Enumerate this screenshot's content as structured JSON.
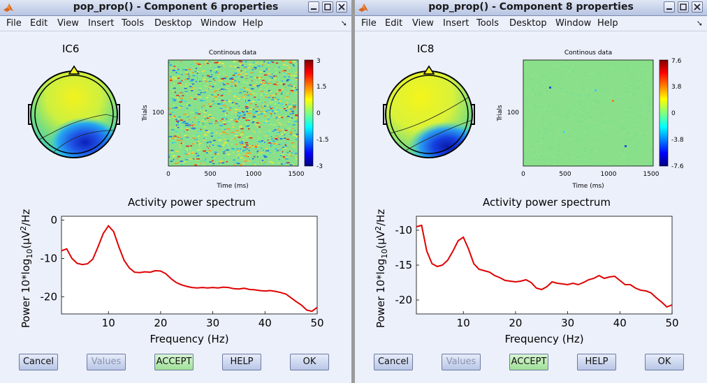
{
  "windows": [
    {
      "title": "pop_prop() - Component 6 properties",
      "menu": [
        "File",
        "Edit",
        "View",
        "Insert",
        "Tools",
        "Desktop",
        "Window",
        "Help"
      ],
      "ic_label": "IC6",
      "continuous": {
        "title": "Continous data",
        "ylabel": "Trials",
        "ytick": "100",
        "xlabel": "Time (ms)",
        "xticks": [
          "0",
          "500",
          "1000",
          "1500"
        ],
        "colorbar_ticks": [
          "3",
          "1.5",
          "0",
          "-1.5",
          "-3"
        ]
      },
      "spectrum": {
        "title": "Activity power spectrum",
        "ylabel": "Power 10*log",
        "ylabel_sub": "10",
        "ylabel_tail": "(",
        "ylabel_unit": "μV",
        "ylabel_sup": "2",
        "ylabel_end": "/Hz)",
        "xlabel": "Frequency (Hz)",
        "yticks": [
          "0",
          "-10",
          "-20"
        ],
        "xticks": [
          "10",
          "20",
          "30",
          "40",
          "50"
        ]
      },
      "buttons": {
        "cancel": "Cancel",
        "values": "Values",
        "accept": "ACCEPT",
        "help": "HELP",
        "ok": "OK"
      }
    },
    {
      "title": "pop_prop() - Component 8 properties",
      "menu": [
        "File",
        "Edit",
        "View",
        "Insert",
        "Tools",
        "Desktop",
        "Window",
        "Help"
      ],
      "ic_label": "IC8",
      "continuous": {
        "title": "Continous data",
        "ylabel": "Trials",
        "ytick": "100",
        "xlabel": "Time (ms)",
        "xticks": [
          "0",
          "500",
          "1000",
          "1500"
        ],
        "colorbar_ticks": [
          "7.6",
          "3.8",
          "0",
          "-3.8",
          "-7.6"
        ]
      },
      "spectrum": {
        "title": "Activity power spectrum",
        "ylabel": "Power 10*log",
        "ylabel_sub": "10",
        "ylabel_tail": "(",
        "ylabel_unit": "μV",
        "ylabel_sup": "2",
        "ylabel_end": "/Hz)",
        "xlabel": "Frequency (Hz)",
        "yticks": [
          "-10",
          "-15",
          "-20"
        ],
        "xticks": [
          "10",
          "20",
          "30",
          "40",
          "50"
        ]
      },
      "buttons": {
        "cancel": "Cancel",
        "values": "Values",
        "accept": "ACCEPT",
        "help": "HELP",
        "ok": "OK"
      }
    }
  ],
  "chart_data": [
    {
      "type": "line",
      "title": "Activity power spectrum",
      "xlabel": "Frequency (Hz)",
      "ylabel": "Power 10*log10(μV2/Hz)",
      "xlim": [
        1,
        50
      ],
      "ylim": [
        -24.5,
        1
      ],
      "series": [
        {
          "name": "IC6",
          "color": "#e00000",
          "x": [
            1,
            2,
            3,
            4,
            5,
            6,
            7,
            8,
            9,
            10,
            11,
            12,
            13,
            14,
            15,
            16,
            17,
            18,
            19,
            20,
            21,
            22,
            23,
            24,
            25,
            26,
            27,
            28,
            29,
            30,
            31,
            32,
            33,
            34,
            35,
            36,
            37,
            38,
            39,
            40,
            41,
            42,
            43,
            44,
            45,
            46,
            47,
            48,
            49,
            50
          ],
          "y": [
            -8,
            -7.5,
            -10,
            -11.3,
            -11.6,
            -11.4,
            -10.2,
            -7,
            -3.5,
            -1.5,
            -3,
            -7,
            -10.5,
            -12.5,
            -13.6,
            -13.7,
            -13.5,
            -13.6,
            -13.2,
            -13.3,
            -14,
            -15.3,
            -16.3,
            -16.9,
            -17.3,
            -17.6,
            -17.7,
            -17.6,
            -17.7,
            -17.6,
            -17.7,
            -17.5,
            -17.6,
            -17.9,
            -18,
            -17.8,
            -18.1,
            -18.2,
            -18.4,
            -18.5,
            -18.4,
            -18.6,
            -18.9,
            -19.3,
            -20.3,
            -21.3,
            -22.2,
            -23.5,
            -23.8,
            -22.8
          ]
        }
      ],
      "axis_yticks": [
        0,
        -10,
        -20
      ],
      "axis_xticks": [
        10,
        20,
        30,
        40,
        50
      ]
    },
    {
      "type": "line",
      "title": "Activity power spectrum",
      "xlabel": "Frequency (Hz)",
      "ylabel": "Power 10*log10(μV2/Hz)",
      "xlim": [
        1,
        50
      ],
      "ylim": [
        -22,
        -8
      ],
      "series": [
        {
          "name": "IC8",
          "color": "#e00000",
          "x": [
            1,
            2,
            3,
            4,
            5,
            6,
            7,
            8,
            9,
            10,
            11,
            12,
            13,
            14,
            15,
            16,
            17,
            18,
            19,
            20,
            21,
            22,
            23,
            24,
            25,
            26,
            27,
            28,
            29,
            30,
            31,
            32,
            33,
            34,
            35,
            36,
            37,
            38,
            39,
            40,
            41,
            42,
            43,
            44,
            45,
            46,
            47,
            48,
            49,
            50
          ],
          "y": [
            -9.5,
            -9.3,
            -13,
            -14.8,
            -15.2,
            -15,
            -14.3,
            -13,
            -11.5,
            -11,
            -12.7,
            -14.8,
            -15.6,
            -15.8,
            -16,
            -16.5,
            -16.8,
            -17.2,
            -17.3,
            -17.4,
            -17.3,
            -17.1,
            -17.5,
            -18.3,
            -18.5,
            -18.1,
            -17.4,
            -17.6,
            -17.7,
            -17.8,
            -17.6,
            -17.8,
            -17.5,
            -17.1,
            -16.9,
            -16.5,
            -16.9,
            -16.7,
            -16.6,
            -17.2,
            -17.8,
            -17.8,
            -18.3,
            -18.6,
            -18.7,
            -19,
            -19.7,
            -20.3,
            -21,
            -20.7
          ]
        }
      ],
      "axis_yticks": [
        -10,
        -15,
        -20
      ],
      "axis_xticks": [
        10,
        20,
        30,
        40,
        50
      ]
    }
  ]
}
